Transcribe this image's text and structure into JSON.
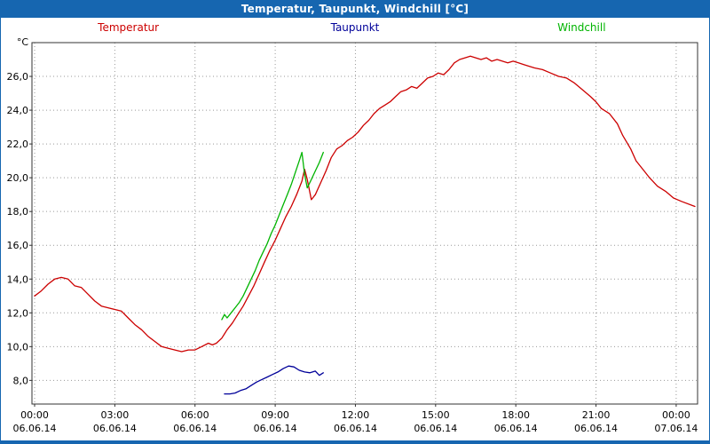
{
  "window_title": "Temperatur, Taupunkt, Windchill [°C]",
  "legend": [
    {
      "label": "Temperatur",
      "color": "#cc0000"
    },
    {
      "label": "Taupunkt",
      "color": "#000099"
    },
    {
      "label": "Windchill",
      "color": "#00b400"
    }
  ],
  "colors": {
    "titlebar": "#1666b0",
    "grid": "#999999",
    "plot_border": "#333333",
    "tick_text": "#000000"
  },
  "chart_data": {
    "type": "line",
    "title": "Temperatur, Taupunkt, Windchill [°C]",
    "y_unit": "°C",
    "ylim": [
      6.6,
      28.0
    ],
    "yticks": [
      8,
      10,
      12,
      14,
      16,
      18,
      20,
      22,
      24,
      26
    ],
    "ytick_labels": [
      "8,0",
      "10,0",
      "12,0",
      "14,0",
      "16,0",
      "18,0",
      "20,0",
      "22,0",
      "24,0",
      "26,0"
    ],
    "xlim_hours": [
      -0.1,
      24.8
    ],
    "xticks": [
      {
        "h": 0,
        "time": "00:00",
        "date": "06.06.14"
      },
      {
        "h": 3,
        "time": "03:00",
        "date": "06.06.14"
      },
      {
        "h": 6,
        "time": "06:00",
        "date": "06.06.14"
      },
      {
        "h": 9,
        "time": "09:00",
        "date": "06.06.14"
      },
      {
        "h": 12,
        "time": "12:00",
        "date": "06.06.14"
      },
      {
        "h": 15,
        "time": "15:00",
        "date": "06.06.14"
      },
      {
        "h": 18,
        "time": "18:00",
        "date": "06.06.14"
      },
      {
        "h": 21,
        "time": "21:00",
        "date": "06.06.14"
      },
      {
        "h": 24,
        "time": "00:00",
        "date": "07.06.14"
      }
    ],
    "grid": true,
    "legend_position": "top",
    "series": [
      {
        "name": "Temperatur",
        "color": "#cc0000",
        "points": [
          [
            0,
            13.0
          ],
          [
            0.25,
            13.3
          ],
          [
            0.5,
            13.7
          ],
          [
            0.75,
            14.0
          ],
          [
            1.0,
            14.1
          ],
          [
            1.25,
            14.0
          ],
          [
            1.5,
            13.6
          ],
          [
            1.75,
            13.5
          ],
          [
            2.0,
            13.1
          ],
          [
            2.25,
            12.7
          ],
          [
            2.5,
            12.4
          ],
          [
            2.75,
            12.3
          ],
          [
            3.0,
            12.2
          ],
          [
            3.25,
            12.1
          ],
          [
            3.5,
            11.7
          ],
          [
            3.75,
            11.3
          ],
          [
            4.0,
            11.0
          ],
          [
            4.25,
            10.6
          ],
          [
            4.5,
            10.3
          ],
          [
            4.75,
            10.0
          ],
          [
            5.0,
            9.9
          ],
          [
            5.25,
            9.8
          ],
          [
            5.5,
            9.7
          ],
          [
            5.75,
            9.8
          ],
          [
            6.0,
            9.8
          ],
          [
            6.25,
            10.0
          ],
          [
            6.5,
            10.2
          ],
          [
            6.65,
            10.1
          ],
          [
            6.8,
            10.2
          ],
          [
            7.0,
            10.5
          ],
          [
            7.2,
            11.0
          ],
          [
            7.4,
            11.4
          ],
          [
            7.6,
            11.9
          ],
          [
            7.8,
            12.4
          ],
          [
            8.0,
            13.0
          ],
          [
            8.2,
            13.6
          ],
          [
            8.4,
            14.3
          ],
          [
            8.6,
            15.0
          ],
          [
            8.8,
            15.7
          ],
          [
            9.0,
            16.3
          ],
          [
            9.2,
            17.0
          ],
          [
            9.4,
            17.7
          ],
          [
            9.6,
            18.3
          ],
          [
            9.8,
            19.0
          ],
          [
            10.0,
            19.8
          ],
          [
            10.1,
            20.5
          ],
          [
            10.2,
            19.9
          ],
          [
            10.35,
            18.7
          ],
          [
            10.5,
            19.0
          ],
          [
            10.7,
            19.7
          ],
          [
            10.9,
            20.4
          ],
          [
            11.1,
            21.2
          ],
          [
            11.3,
            21.7
          ],
          [
            11.5,
            21.9
          ],
          [
            11.7,
            22.2
          ],
          [
            11.9,
            22.4
          ],
          [
            12.1,
            22.7
          ],
          [
            12.3,
            23.1
          ],
          [
            12.5,
            23.4
          ],
          [
            12.7,
            23.8
          ],
          [
            12.9,
            24.1
          ],
          [
            13.1,
            24.3
          ],
          [
            13.3,
            24.5
          ],
          [
            13.5,
            24.8
          ],
          [
            13.7,
            25.1
          ],
          [
            13.9,
            25.2
          ],
          [
            14.1,
            25.4
          ],
          [
            14.3,
            25.3
          ],
          [
            14.5,
            25.6
          ],
          [
            14.7,
            25.9
          ],
          [
            14.9,
            26.0
          ],
          [
            15.1,
            26.2
          ],
          [
            15.3,
            26.1
          ],
          [
            15.5,
            26.4
          ],
          [
            15.7,
            26.8
          ],
          [
            15.9,
            27.0
          ],
          [
            16.1,
            27.1
          ],
          [
            16.3,
            27.2
          ],
          [
            16.5,
            27.1
          ],
          [
            16.7,
            27.0
          ],
          [
            16.9,
            27.1
          ],
          [
            17.1,
            26.9
          ],
          [
            17.3,
            27.0
          ],
          [
            17.5,
            26.9
          ],
          [
            17.7,
            26.8
          ],
          [
            17.9,
            26.9
          ],
          [
            18.1,
            26.8
          ],
          [
            18.3,
            26.7
          ],
          [
            18.5,
            26.6
          ],
          [
            18.7,
            26.5
          ],
          [
            19.0,
            26.4
          ],
          [
            19.3,
            26.2
          ],
          [
            19.6,
            26.0
          ],
          [
            19.9,
            25.9
          ],
          [
            20.2,
            25.6
          ],
          [
            20.5,
            25.2
          ],
          [
            20.8,
            24.8
          ],
          [
            21.0,
            24.5
          ],
          [
            21.2,
            24.1
          ],
          [
            21.5,
            23.8
          ],
          [
            21.8,
            23.2
          ],
          [
            22.0,
            22.5
          ],
          [
            22.3,
            21.7
          ],
          [
            22.5,
            21.0
          ],
          [
            22.8,
            20.4
          ],
          [
            23.0,
            20.0
          ],
          [
            23.3,
            19.5
          ],
          [
            23.6,
            19.2
          ],
          [
            23.9,
            18.8
          ],
          [
            24.2,
            18.6
          ],
          [
            24.7,
            18.3
          ]
        ]
      },
      {
        "name": "Taupunkt",
        "color": "#000099",
        "points": [
          [
            7.1,
            7.2
          ],
          [
            7.3,
            7.2
          ],
          [
            7.5,
            7.25
          ],
          [
            7.7,
            7.4
          ],
          [
            7.9,
            7.5
          ],
          [
            8.1,
            7.7
          ],
          [
            8.3,
            7.9
          ],
          [
            8.5,
            8.05
          ],
          [
            8.7,
            8.2
          ],
          [
            8.9,
            8.35
          ],
          [
            9.1,
            8.5
          ],
          [
            9.3,
            8.7
          ],
          [
            9.5,
            8.85
          ],
          [
            9.7,
            8.8
          ],
          [
            9.9,
            8.6
          ],
          [
            10.1,
            8.5
          ],
          [
            10.3,
            8.45
          ],
          [
            10.5,
            8.55
          ],
          [
            10.65,
            8.3
          ],
          [
            10.8,
            8.45
          ]
        ]
      },
      {
        "name": "Windchill",
        "color": "#00b400",
        "points": [
          [
            7.0,
            11.6
          ],
          [
            7.1,
            11.9
          ],
          [
            7.2,
            11.7
          ],
          [
            7.35,
            12.0
          ],
          [
            7.5,
            12.3
          ],
          [
            7.65,
            12.6
          ],
          [
            7.8,
            13.0
          ],
          [
            7.95,
            13.5
          ],
          [
            8.1,
            14.0
          ],
          [
            8.25,
            14.5
          ],
          [
            8.4,
            15.1
          ],
          [
            8.55,
            15.6
          ],
          [
            8.7,
            16.1
          ],
          [
            8.85,
            16.7
          ],
          [
            9.0,
            17.2
          ],
          [
            9.15,
            17.8
          ],
          [
            9.3,
            18.4
          ],
          [
            9.45,
            19.0
          ],
          [
            9.6,
            19.6
          ],
          [
            9.75,
            20.3
          ],
          [
            9.9,
            21.0
          ],
          [
            10.0,
            21.5
          ],
          [
            10.1,
            20.2
          ],
          [
            10.2,
            19.4
          ],
          [
            10.35,
            19.9
          ],
          [
            10.5,
            20.4
          ],
          [
            10.65,
            20.9
          ],
          [
            10.8,
            21.5
          ]
        ]
      }
    ]
  }
}
